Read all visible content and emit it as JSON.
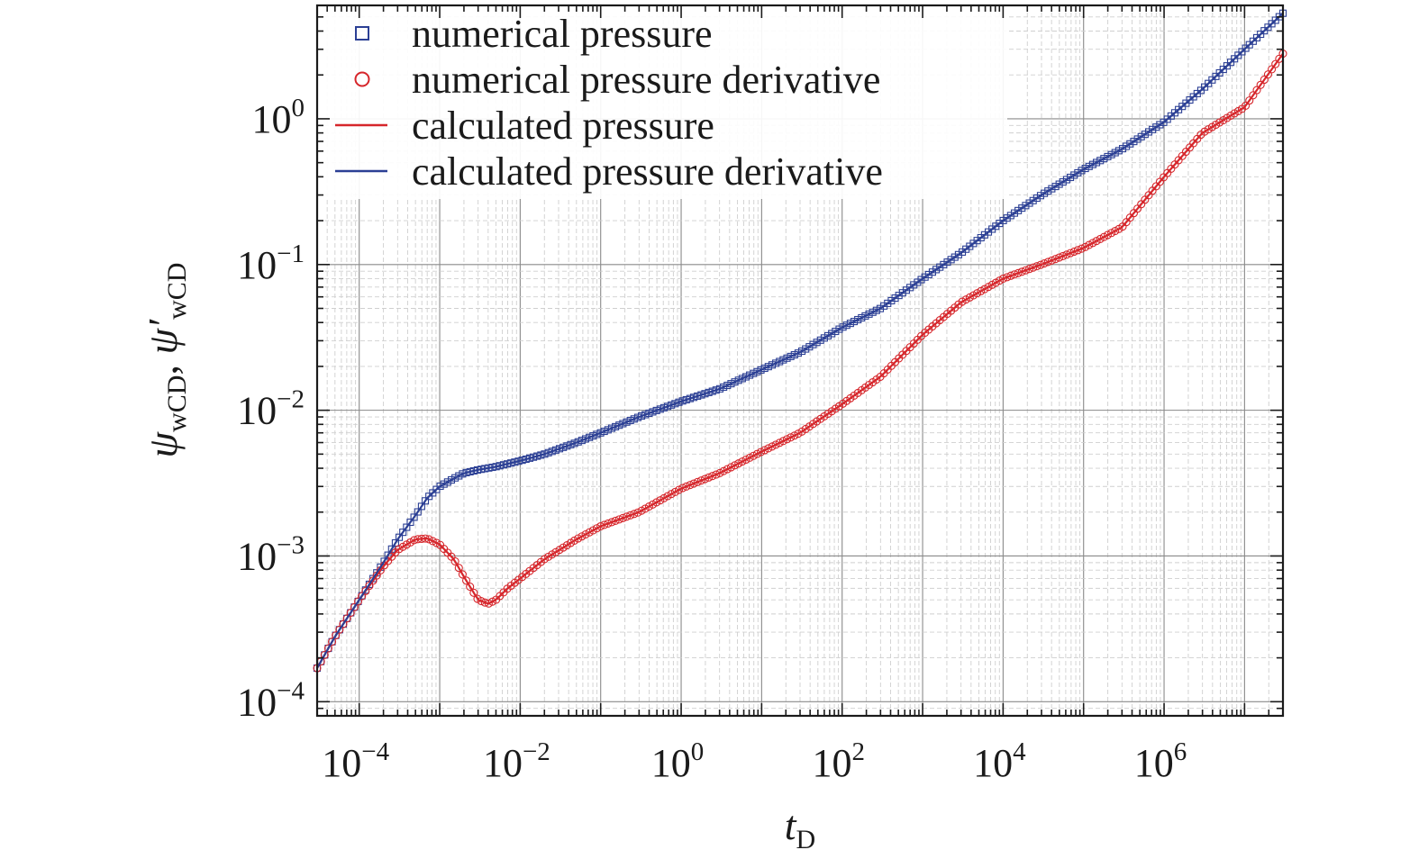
{
  "chart_data": {
    "type": "scatter",
    "xlabel": "t",
    "xlabel_sub": "D",
    "ylabel_parts": [
      {
        "sym": "ψ",
        "sub": "wCD"
      },
      {
        "sep": ", "
      },
      {
        "sym": "ψ′",
        "sub": "wCD"
      }
    ],
    "x_scale": "log",
    "y_scale": "log",
    "xlim": [
      3e-05,
      30000000
    ],
    "ylim": [
      8e-05,
      6
    ],
    "x_ticks": [
      {
        "base": "10",
        "exp": "−4",
        "value": 0.0001
      },
      {
        "base": "10",
        "exp": "−2",
        "value": 0.01
      },
      {
        "base": "10",
        "exp": "0",
        "value": 1
      },
      {
        "base": "10",
        "exp": "2",
        "value": 100
      },
      {
        "base": "10",
        "exp": "4",
        "value": 10000
      },
      {
        "base": "10",
        "exp": "6",
        "value": 1000000
      }
    ],
    "y_ticks": [
      {
        "base": "10",
        "exp": "−4",
        "value": 0.0001
      },
      {
        "base": "10",
        "exp": "−3",
        "value": 0.001
      },
      {
        "base": "10",
        "exp": "−2",
        "value": 0.01
      },
      {
        "base": "10",
        "exp": "−1",
        "value": 0.1
      },
      {
        "base": "10",
        "exp": "0",
        "value": 1
      }
    ],
    "grid": true,
    "legend_position": "top-left",
    "series": [
      {
        "name": "numerical pressure",
        "kind": "markers",
        "marker": "square",
        "color": "#2b3f94",
        "x": [
          3e-05,
          5e-05,
          0.0001,
          0.0002,
          0.0003,
          0.0005,
          0.0007,
          0.001,
          0.0015,
          0.002,
          0.003,
          0.005,
          0.01,
          0.02,
          0.05,
          0.1,
          0.3,
          1,
          3,
          10,
          30,
          100,
          300,
          1000,
          3000,
          10000,
          30000,
          100000,
          300000,
          1000000,
          3000000,
          10000000,
          30000000
        ],
        "y": [
          0.00017,
          0.00028,
          0.0005,
          0.0009,
          0.0013,
          0.0019,
          0.0025,
          0.003,
          0.0034,
          0.0037,
          0.0039,
          0.0041,
          0.0045,
          0.005,
          0.006,
          0.007,
          0.009,
          0.0115,
          0.014,
          0.019,
          0.025,
          0.037,
          0.05,
          0.08,
          0.12,
          0.2,
          0.3,
          0.45,
          0.62,
          0.95,
          1.6,
          3,
          5.3
        ]
      },
      {
        "name": "numerical pressure derivative",
        "kind": "markers",
        "marker": "circle",
        "color": "#d6262b",
        "x": [
          3e-05,
          5e-05,
          0.0001,
          0.0002,
          0.0003,
          0.0005,
          0.0007,
          0.001,
          0.0015,
          0.002,
          0.003,
          0.004,
          0.005,
          0.007,
          0.01,
          0.02,
          0.05,
          0.1,
          0.3,
          1,
          3,
          10,
          30,
          100,
          300,
          1000,
          3000,
          10000,
          30000,
          100000,
          300000,
          1000000,
          3000000,
          10000000,
          30000000
        ],
        "y": [
          0.00017,
          0.00028,
          0.0005,
          0.00085,
          0.0011,
          0.0013,
          0.00132,
          0.0012,
          0.00095,
          0.00072,
          0.0005,
          0.00047,
          0.0005,
          0.0006,
          0.0007,
          0.00095,
          0.0013,
          0.0016,
          0.002,
          0.0029,
          0.0037,
          0.0052,
          0.007,
          0.011,
          0.017,
          0.033,
          0.055,
          0.08,
          0.1,
          0.13,
          0.18,
          0.4,
          0.8,
          1.2,
          2.8
        ]
      },
      {
        "name": "calculated pressure",
        "kind": "line",
        "color": "#d6262b",
        "x": [
          3e-05,
          5e-05,
          0.0001,
          0.0002,
          0.0003,
          0.0005,
          0.0007,
          0.001,
          0.0015,
          0.002,
          0.003,
          0.004,
          0.005,
          0.007,
          0.01,
          0.02,
          0.05,
          0.1,
          0.3,
          1,
          3,
          10,
          30,
          100,
          300,
          1000,
          3000,
          10000,
          30000,
          100000,
          300000,
          1000000,
          3000000,
          10000000,
          30000000
        ],
        "y": [
          0.00017,
          0.00028,
          0.0005,
          0.00085,
          0.0011,
          0.0013,
          0.00132,
          0.0012,
          0.00095,
          0.00072,
          0.0005,
          0.00047,
          0.0005,
          0.0006,
          0.0007,
          0.00095,
          0.0013,
          0.0016,
          0.002,
          0.0029,
          0.0037,
          0.0052,
          0.007,
          0.011,
          0.017,
          0.033,
          0.055,
          0.08,
          0.1,
          0.13,
          0.18,
          0.4,
          0.8,
          1.2,
          2.8
        ]
      },
      {
        "name": "calculated pressure derivative",
        "kind": "line",
        "color": "#2b3f94",
        "x": [
          3e-05,
          5e-05,
          0.0001,
          0.0002,
          0.0003,
          0.0005,
          0.0007,
          0.001,
          0.0015,
          0.002,
          0.003,
          0.005,
          0.01,
          0.02,
          0.05,
          0.1,
          0.3,
          1,
          3,
          10,
          30,
          100,
          300,
          1000,
          3000,
          10000,
          30000,
          100000,
          300000,
          1000000,
          3000000,
          10000000,
          30000000
        ],
        "y": [
          0.00017,
          0.00028,
          0.0005,
          0.0009,
          0.0013,
          0.0019,
          0.0025,
          0.003,
          0.0034,
          0.0037,
          0.0039,
          0.0041,
          0.0045,
          0.005,
          0.006,
          0.007,
          0.009,
          0.0115,
          0.014,
          0.019,
          0.025,
          0.037,
          0.05,
          0.08,
          0.12,
          0.2,
          0.3,
          0.45,
          0.62,
          0.95,
          1.6,
          3,
          5.3
        ]
      }
    ]
  }
}
